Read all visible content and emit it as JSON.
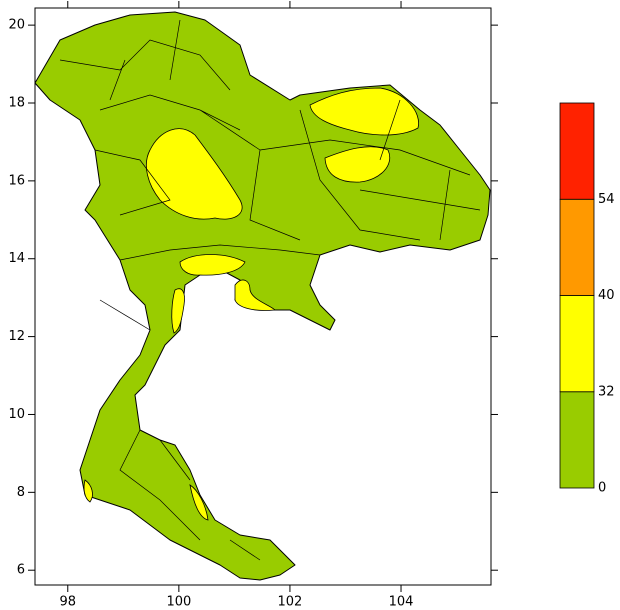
{
  "map": {
    "xlim": [
      97.41,
      105.62
    ],
    "ylim": [
      5.62,
      20.44
    ],
    "xticks": [
      98,
      100,
      102,
      104
    ],
    "yticks": [
      6,
      8,
      10,
      12,
      14,
      16,
      18,
      20
    ]
  },
  "colorbar": {
    "levels": [
      0,
      32,
      40,
      54
    ],
    "colors": [
      "#99cc00",
      "#ffff00",
      "#ff9900",
      "#ff2200"
    ]
  }
}
